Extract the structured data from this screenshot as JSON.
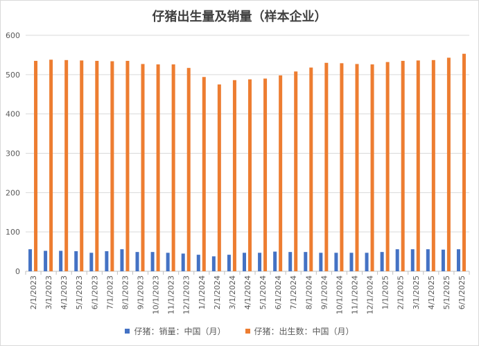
{
  "chart_data": {
    "type": "bar",
    "title": "仔猪出生量及销量（样本企业）",
    "xlabel": "",
    "ylabel": "",
    "ylim": [
      0,
      600
    ],
    "yticks": [
      "0",
      "100",
      "200",
      "300",
      "400",
      "500",
      "600"
    ],
    "grid": true,
    "legend_position": "bottom",
    "categories": [
      "2/1/2023",
      "3/1/2023",
      "4/1/2023",
      "5/1/2023",
      "6/1/2023",
      "7/1/2023",
      "8/1/2023",
      "9/1/2023",
      "10/1/2023",
      "11/1/2023",
      "12/1/2023",
      "1/1/2024",
      "2/1/2024",
      "3/1/2024",
      "4/1/2024",
      "5/1/2024",
      "6/1/2024",
      "7/1/2024",
      "8/1/2024",
      "9/1/2024",
      "10/1/2024",
      "11/1/2024",
      "12/1/2024",
      "1/1/2025",
      "2/1/2025",
      "3/1/2025",
      "4/1/2025",
      "5/1/2025",
      "6/1/2025"
    ],
    "series": [
      {
        "name": "仔猪：销量：中国（月）",
        "color": "#4472c4",
        "values": [
          56,
          52,
          52,
          51,
          47,
          51,
          56,
          49,
          49,
          47,
          45,
          42,
          38,
          42,
          47,
          47,
          50,
          49,
          49,
          47,
          47,
          47,
          47,
          49,
          56,
          56,
          56,
          55,
          56
        ]
      },
      {
        "name": "仔猪：出生数：中国（月）",
        "color": "#ed7d31",
        "values": [
          535,
          538,
          537,
          536,
          535,
          534,
          535,
          527,
          526,
          526,
          517,
          494,
          475,
          486,
          488,
          490,
          498,
          508,
          518,
          530,
          529,
          527,
          526,
          532,
          535,
          536,
          537,
          543,
          553
        ]
      }
    ]
  }
}
